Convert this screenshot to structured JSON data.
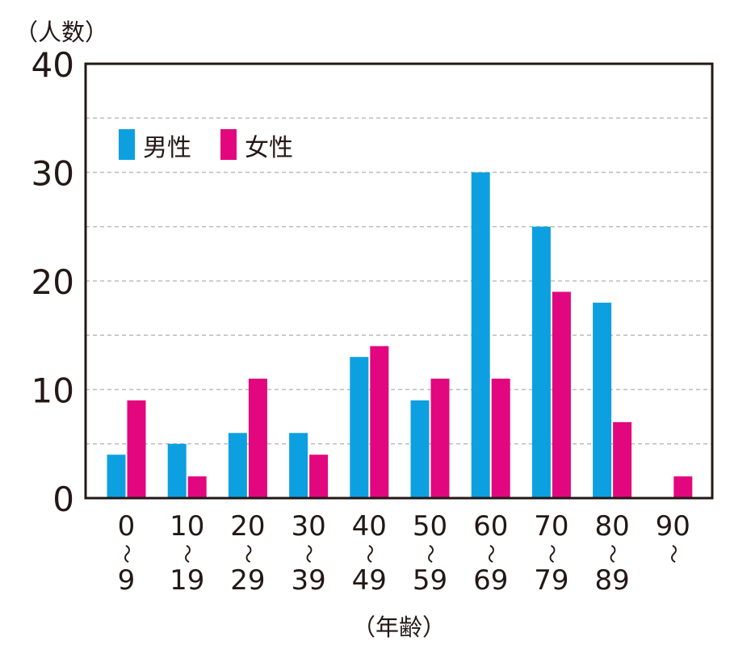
{
  "chart_data": {
    "type": "bar",
    "ylabel": "（人数）",
    "xlabel": "（年齢）",
    "ylim": [
      0,
      40
    ],
    "y_ticks": [
      "0",
      "10",
      "20",
      "30",
      "40"
    ],
    "grid": "dashed horizontal every 5",
    "legend_position": "top-left",
    "categories": [
      [
        "0",
        "〜",
        "9"
      ],
      [
        "10",
        "〜",
        "19"
      ],
      [
        "20",
        "〜",
        "29"
      ],
      [
        "30",
        "〜",
        "39"
      ],
      [
        "40",
        "〜",
        "49"
      ],
      [
        "50",
        "〜",
        "59"
      ],
      [
        "60",
        "〜",
        "69"
      ],
      [
        "70",
        "〜",
        "79"
      ],
      [
        "80",
        "〜",
        "89"
      ],
      [
        "90",
        "〜",
        ""
      ]
    ],
    "series": [
      {
        "name": "男性",
        "color": "#0ca0e0",
        "values": [
          4,
          5,
          6,
          6,
          13,
          9,
          30,
          25,
          18,
          0
        ]
      },
      {
        "name": "女性",
        "color": "#e2077e",
        "values": [
          9,
          2,
          11,
          4,
          14,
          11,
          11,
          19,
          7,
          2
        ]
      }
    ]
  }
}
